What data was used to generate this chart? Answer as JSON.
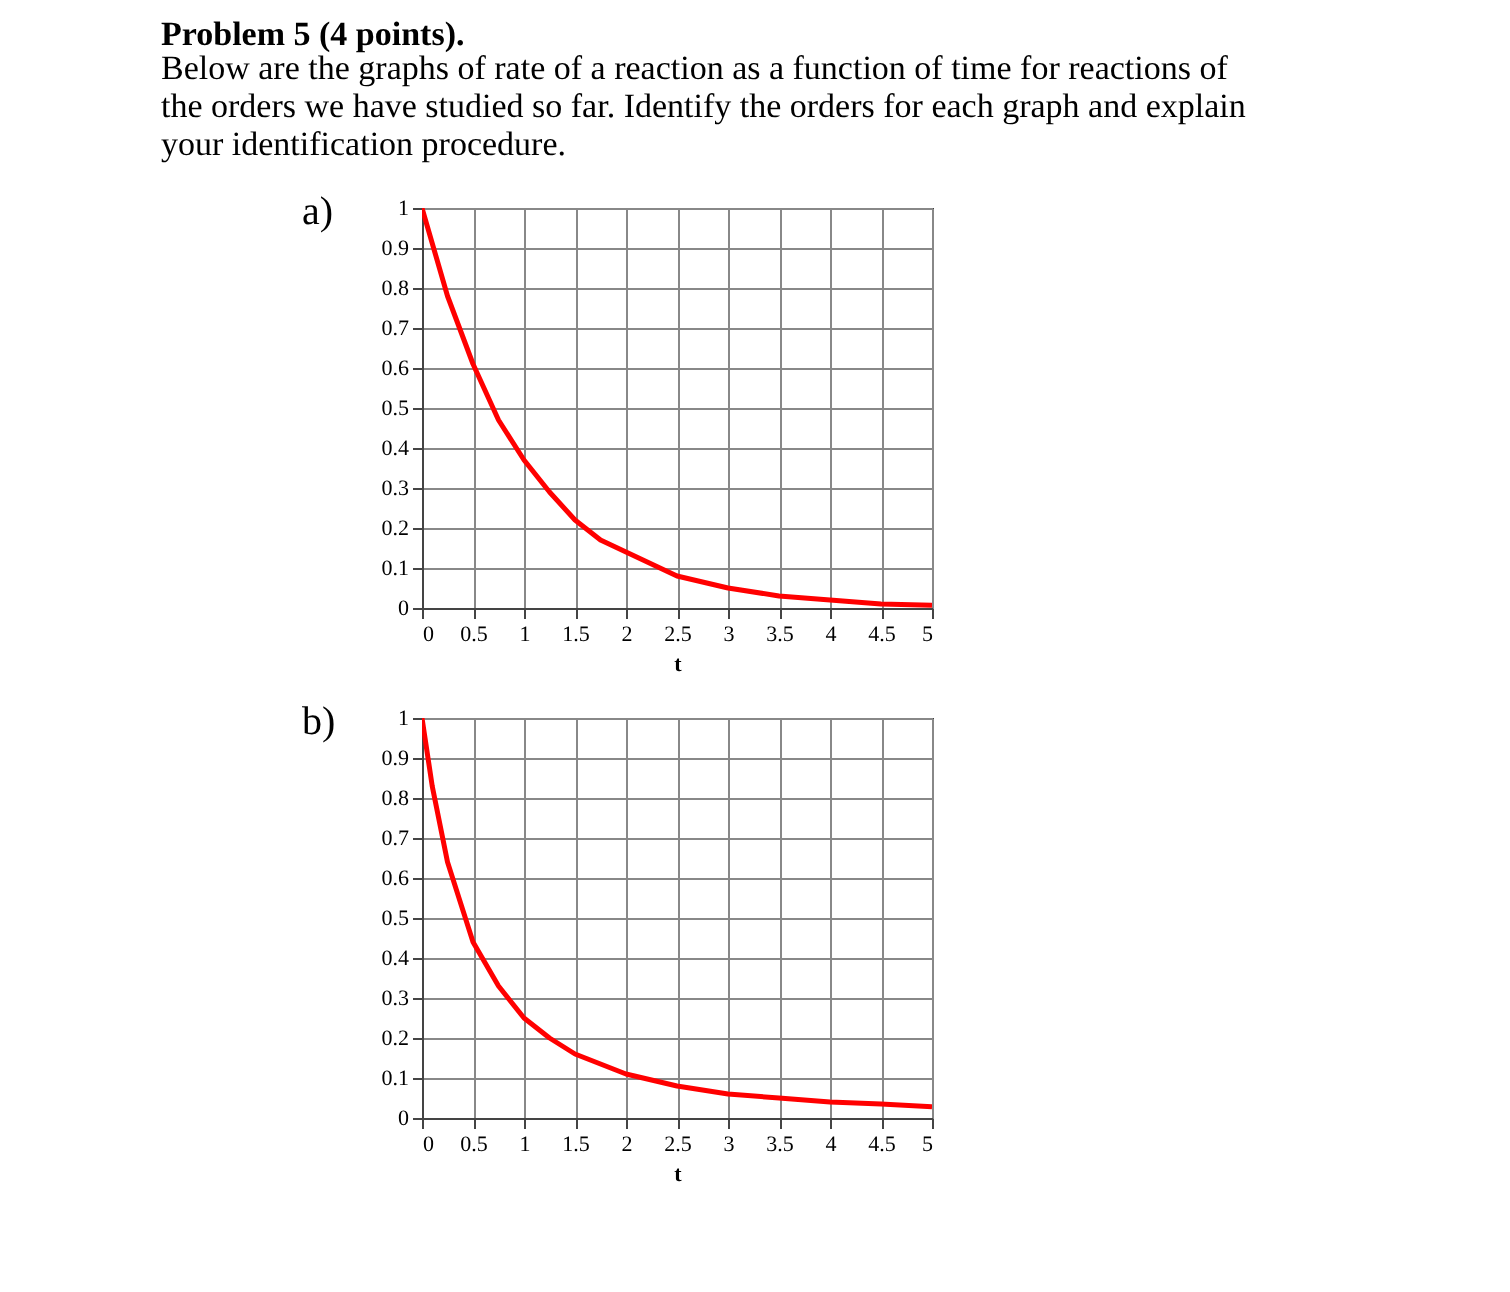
{
  "chart_data": [
    {
      "type": "line",
      "title": "Problem 5 (4 points).",
      "subtitle": "Below are the graphs of rate of a reaction as a function of time for reactions of the orders we have studied so far. Identify the orders for each graph and explain your identification procedure.",
      "annotations": [
        "a)"
      ],
      "xlabel": "t",
      "x": [
        0,
        0.25,
        0.5,
        0.75,
        1,
        1.25,
        1.5,
        1.75,
        2,
        2.5,
        3,
        3.5,
        4,
        4.5,
        5
      ],
      "series": [
        {
          "color": "#ff0000",
          "values": [
            1,
            0.78,
            0.61,
            0.47,
            0.37,
            0.29,
            0.22,
            0.17,
            0.14,
            0.08,
            0.05,
            0.03,
            0.02,
            0.01,
            0.007
          ]
        }
      ],
      "xlim": [
        0,
        5
      ],
      "ylim": [
        0,
        1
      ],
      "xticks": [
        0,
        0.5,
        1,
        1.5,
        2,
        2.5,
        3,
        3.5,
        4,
        4.5,
        5
      ],
      "yticks": [
        0,
        0.1,
        0.2,
        0.3,
        0.4,
        0.5,
        0.6,
        0.7,
        0.8,
        0.9,
        1
      ],
      "grid": true,
      "marker": "none",
      "line_style": "solid"
    },
    {
      "type": "line",
      "annotations": [
        "b)"
      ],
      "xlabel": "t",
      "x": [
        0,
        0.1,
        0.25,
        0.5,
        0.75,
        1,
        1.25,
        1.5,
        2,
        2.5,
        3,
        3.5,
        4,
        4.5,
        5
      ],
      "series": [
        {
          "color": "#ff0000",
          "values": [
            1,
            0.83,
            0.64,
            0.44,
            0.33,
            0.25,
            0.2,
            0.16,
            0.11,
            0.08,
            0.06,
            0.05,
            0.04,
            0.035,
            0.028
          ]
        }
      ],
      "xlim": [
        0,
        5
      ],
      "ylim": [
        0,
        1
      ],
      "xticks": [
        0,
        0.5,
        1,
        1.5,
        2,
        2.5,
        3,
        3.5,
        4,
        4.5,
        5
      ],
      "yticks": [
        0,
        0.1,
        0.2,
        0.3,
        0.4,
        0.5,
        0.6,
        0.7,
        0.8,
        0.9,
        1
      ],
      "grid": true,
      "marker": "none",
      "line_style": "solid"
    }
  ]
}
